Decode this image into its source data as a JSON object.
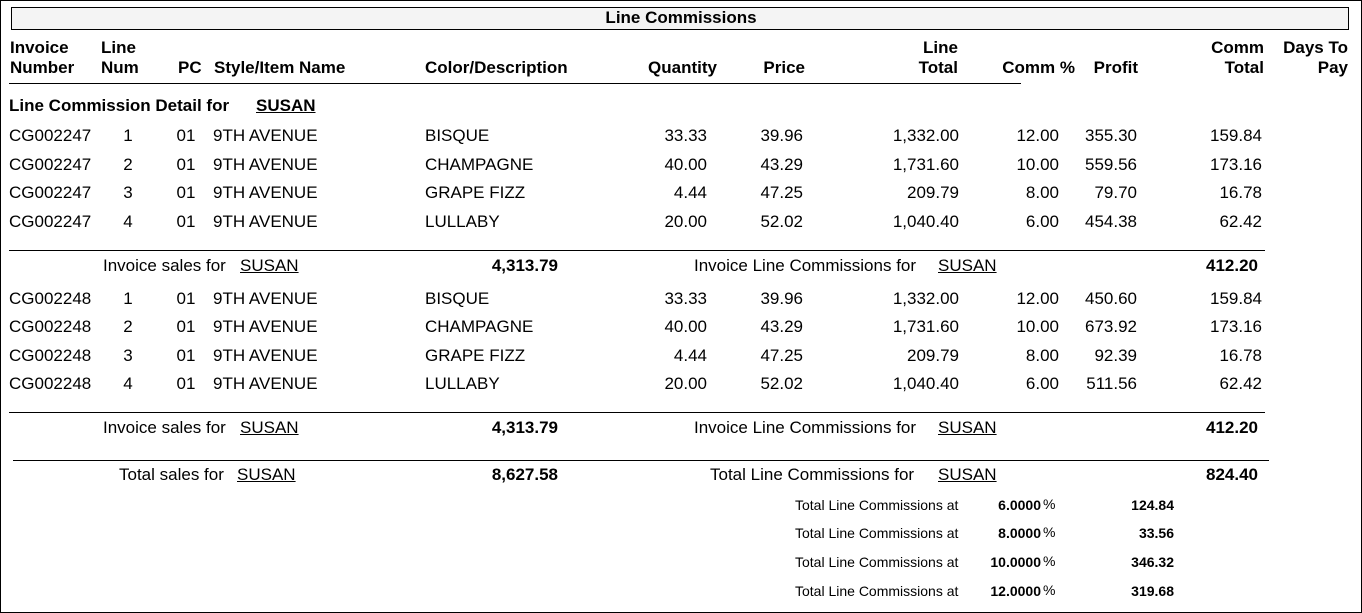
{
  "title": "Line Commissions",
  "columns": [
    [
      "Invoice",
      "Number"
    ],
    [
      "Line",
      "Num"
    ],
    [
      "PC"
    ],
    [
      "Style/Item Name"
    ],
    [
      "Color/Description"
    ],
    [
      "Quantity"
    ],
    [
      "Price"
    ],
    [
      "Line",
      "Total"
    ],
    [
      "Comm %"
    ],
    [
      "Profit"
    ],
    [
      "Comm",
      "Total"
    ],
    [
      "Days To",
      "Pay"
    ]
  ],
  "section": {
    "label": "Line Commission Detail for",
    "rep": "SUSAN"
  },
  "invoices": [
    {
      "rows": [
        [
          "CG002247",
          "1",
          "01",
          "9TH AVENUE",
          "BISQUE",
          "33.33",
          "39.96",
          "1,332.00",
          "12.00",
          "355.30",
          "159.84"
        ],
        [
          "CG002247",
          "2",
          "01",
          "9TH AVENUE",
          "CHAMPAGNE",
          "40.00",
          "43.29",
          "1,731.60",
          "10.00",
          "559.56",
          "173.16"
        ],
        [
          "CG002247",
          "3",
          "01",
          "9TH AVENUE",
          "GRAPE FIZZ",
          "4.44",
          "47.25",
          "209.79",
          "8.00",
          "79.70",
          "16.78"
        ],
        [
          "CG002247",
          "4",
          "01",
          "9TH AVENUE",
          "LULLABY",
          "20.00",
          "52.02",
          "1,040.40",
          "6.00",
          "454.38",
          "62.42"
        ]
      ],
      "subtotal": {
        "sales_label": "Invoice sales for",
        "sales_rep": "SUSAN",
        "sales": "4,313.79",
        "comm_label": "Invoice Line Commissions for",
        "comm_rep": "SUSAN",
        "comm": "412.20"
      }
    },
    {
      "rows": [
        [
          "CG002248",
          "1",
          "01",
          "9TH AVENUE",
          "BISQUE",
          "33.33",
          "39.96",
          "1,332.00",
          "12.00",
          "450.60",
          "159.84"
        ],
        [
          "CG002248",
          "2",
          "01",
          "9TH AVENUE",
          "CHAMPAGNE",
          "40.00",
          "43.29",
          "1,731.60",
          "10.00",
          "673.92",
          "173.16"
        ],
        [
          "CG002248",
          "3",
          "01",
          "9TH AVENUE",
          "GRAPE FIZZ",
          "4.44",
          "47.25",
          "209.79",
          "8.00",
          "92.39",
          "16.78"
        ],
        [
          "CG002248",
          "4",
          "01",
          "9TH AVENUE",
          "LULLABY",
          "20.00",
          "52.02",
          "1,040.40",
          "6.00",
          "511.56",
          "62.42"
        ]
      ],
      "subtotal": {
        "sales_label": "Invoice sales for",
        "sales_rep": "SUSAN",
        "sales": "4,313.79",
        "comm_label": "Invoice Line Commissions for",
        "comm_rep": "SUSAN",
        "comm": "412.20"
      }
    }
  ],
  "total": {
    "sales_label": "Total sales for",
    "sales_rep": "SUSAN",
    "sales": "8,627.58",
    "comm_label": "Total Line Commissions for",
    "comm_rep": "SUSAN",
    "comm": "824.40"
  },
  "breakdown": [
    {
      "label": "Total Line Commissions at",
      "rate": "6.0000",
      "unit": "%",
      "amount": "124.84"
    },
    {
      "label": "Total Line Commissions at",
      "rate": "8.0000",
      "unit": "%",
      "amount": "33.56"
    },
    {
      "label": "Total Line Commissions at",
      "rate": "10.0000",
      "unit": "%",
      "amount": "346.32"
    },
    {
      "label": "Total Line Commissions at",
      "rate": "12.0000",
      "unit": "%",
      "amount": "319.68"
    }
  ]
}
